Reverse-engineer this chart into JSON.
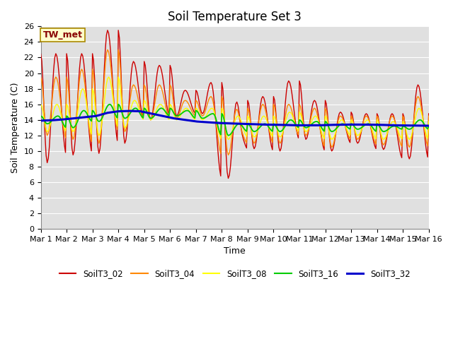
{
  "title": "Soil Temperature Set 3",
  "xlabel": "Time",
  "ylabel": "Soil Temperature (C)",
  "ylim": [
    0,
    26
  ],
  "xlim": [
    0,
    360
  ],
  "yticks": [
    0,
    2,
    4,
    6,
    8,
    10,
    12,
    14,
    16,
    18,
    20,
    22,
    24,
    26
  ],
  "xtick_labels": [
    "Mar 1",
    "Mar 2",
    "Mar 3",
    "Mar 4",
    "Mar 5",
    "Mar 6",
    "Mar 7",
    "Mar 8",
    "Mar 9",
    "Mar 10",
    "Mar 11",
    "Mar 12",
    "Mar 13",
    "Mar 14",
    "Mar 15",
    "Mar 16"
  ],
  "xtick_positions": [
    0,
    24,
    48,
    72,
    96,
    120,
    144,
    168,
    192,
    216,
    240,
    264,
    288,
    312,
    336,
    360
  ],
  "series_colors": [
    "#cc0000",
    "#ff8800",
    "#ffff00",
    "#00cc00",
    "#0000cc"
  ],
  "series_names": [
    "SoilT3_02",
    "SoilT3_04",
    "SoilT3_08",
    "SoilT3_16",
    "SoilT3_32"
  ],
  "annotation_text": "TW_met",
  "annotation_color": "#880000",
  "annotation_bg": "#ffffcc",
  "annotation_border": "#aa8800",
  "fig_bg_color": "#ffffff",
  "plot_bg_color": "#e0e0e0",
  "grid_color": "#ffffff",
  "title_fontsize": 12,
  "axis_label_fontsize": 9,
  "tick_fontsize": 8,
  "daily_peaks_02": [
    22.5,
    22.5,
    25.5,
    21.5,
    21.0,
    17.8,
    18.8,
    16.5,
    17.0,
    19.0,
    16.5,
    15.0,
    14.8,
    14.8,
    18.5
  ],
  "daily_mins_02": [
    8.5,
    9.5,
    9.7,
    11.0,
    14.0,
    14.5,
    14.8,
    6.5,
    10.3,
    10.0,
    11.5,
    10.0,
    11.0,
    10.2,
    9.0
  ],
  "daily_peaks_04": [
    19.5,
    20.5,
    23.0,
    18.5,
    18.5,
    16.5,
    17.0,
    15.5,
    16.0,
    16.0,
    15.5,
    14.5,
    14.5,
    14.5,
    17.0
  ],
  "daily_mins_04": [
    12.0,
    11.5,
    11.0,
    12.5,
    14.0,
    14.2,
    14.5,
    9.5,
    11.0,
    11.0,
    12.0,
    10.5,
    11.5,
    10.8,
    10.5
  ],
  "daily_peaks_08": [
    16.0,
    18.0,
    19.5,
    16.5,
    16.0,
    15.5,
    15.5,
    14.5,
    14.5,
    15.0,
    14.5,
    14.0,
    14.0,
    13.8,
    15.5
  ],
  "daily_mins_08": [
    12.5,
    12.5,
    12.0,
    13.0,
    14.0,
    14.0,
    14.0,
    11.5,
    11.8,
    11.8,
    12.5,
    11.5,
    12.0,
    11.5,
    11.5
  ],
  "daily_peaks_16": [
    14.5,
    15.2,
    16.0,
    15.5,
    15.5,
    15.2,
    14.8,
    13.5,
    13.5,
    14.0,
    13.8,
    13.5,
    13.5,
    13.2,
    14.0
  ],
  "daily_mins_16": [
    13.5,
    13.0,
    13.8,
    14.2,
    14.2,
    14.5,
    14.2,
    12.0,
    12.5,
    12.5,
    13.0,
    12.5,
    12.8,
    12.5,
    12.8
  ],
  "blue_values": [
    13.9,
    13.95,
    14.05,
    14.2,
    14.35,
    14.5,
    14.9,
    15.1,
    15.15,
    15.1,
    14.8,
    14.5,
    14.2,
    14.0,
    13.8,
    13.7,
    13.6,
    13.55,
    13.5,
    13.45,
    13.4,
    13.38,
    13.35,
    13.3,
    13.3,
    13.3,
    13.35,
    13.38,
    13.4,
    13.4,
    13.38,
    13.35,
    13.3,
    13.28,
    13.25,
    13.25
  ]
}
